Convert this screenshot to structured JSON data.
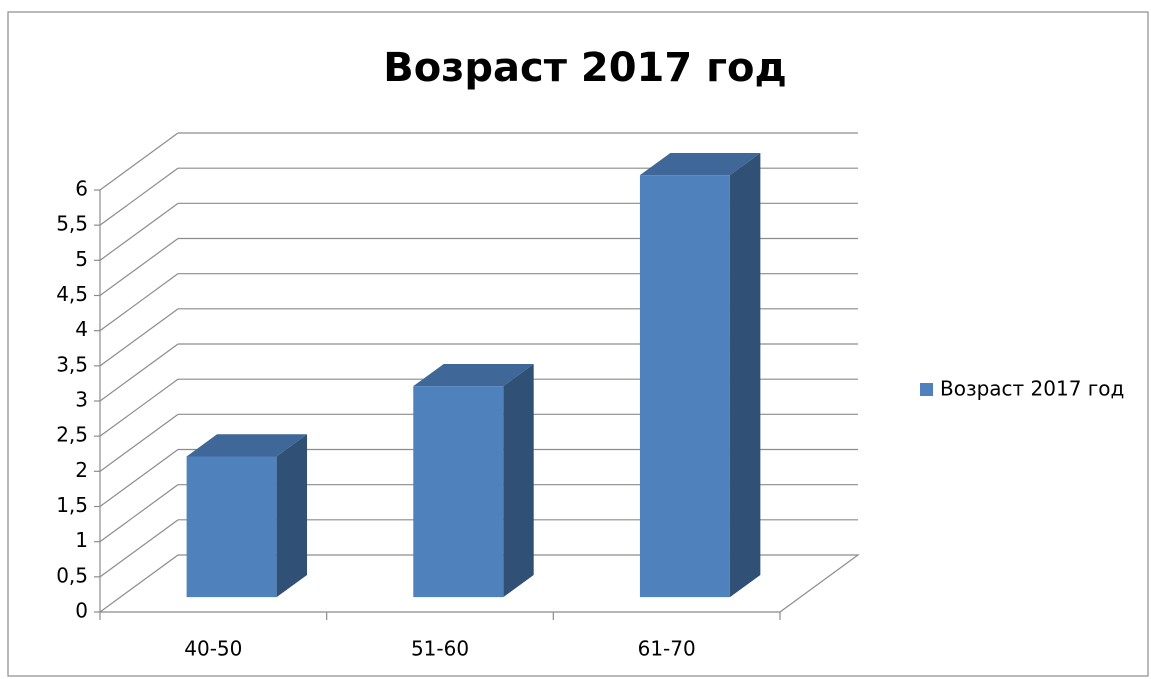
{
  "chart_data": {
    "type": "bar3d",
    "title": "Возраст 2017 год",
    "categories": [
      "40-50",
      "51-60",
      "61-70"
    ],
    "series": [
      {
        "name": "Возраст 2017 год",
        "color": "#4f81bd",
        "values": [
          2,
          3,
          6
        ]
      }
    ],
    "ylim": [
      0,
      6
    ],
    "yticks": [
      0,
      {
        "value": 0.5,
        "label": "0,5"
      },
      1,
      {
        "value": 1.5,
        "label": "1,5"
      },
      2,
      {
        "value": 2.5,
        "label": "2,5"
      },
      3,
      {
        "value": 3.5,
        "label": "3,5"
      },
      4,
      {
        "value": 4.5,
        "label": "4,5"
      },
      5,
      {
        "value": 5.5,
        "label": "5,5"
      },
      6
    ],
    "grid": true,
    "legend": "right"
  }
}
